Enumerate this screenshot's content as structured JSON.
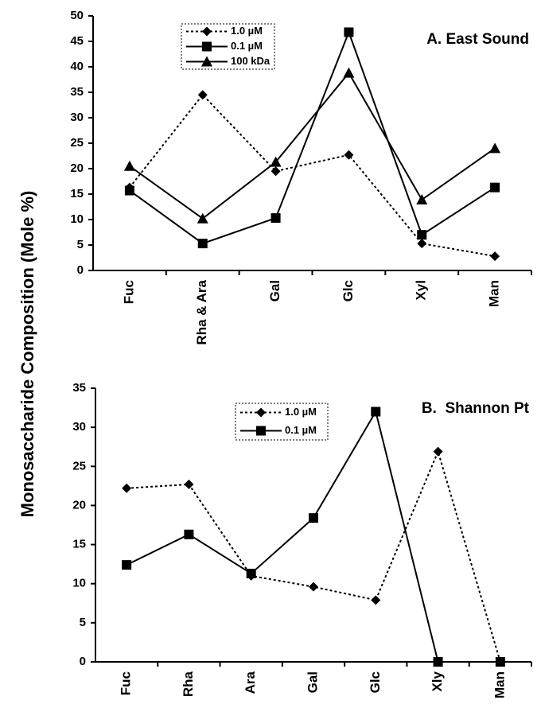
{
  "chart_data": [
    {
      "type": "line",
      "title": "A. East Sound",
      "ylabel": "Monosaccharide Composition (Mole %)",
      "categories": [
        "Fuc",
        "Rha & Ara",
        "Gal",
        "Glc",
        "Xyl",
        "Man"
      ],
      "series": [
        {
          "name": "1.0 µM",
          "color": "#000000",
          "line_style": "dotted",
          "marker": "diamond",
          "values": [
            16.3,
            34.5,
            19.5,
            22.7,
            5.3,
            2.8
          ]
        },
        {
          "name": "0.1 µM",
          "color": "#000000",
          "line_style": "solid",
          "marker": "square",
          "values": [
            15.7,
            5.3,
            10.3,
            46.8,
            7,
            16.3
          ]
        },
        {
          "name": "100 kDa",
          "color": "#000000",
          "line_style": "solid",
          "marker": "triangle",
          "values": [
            20.5,
            10.2,
            21.3,
            38.8,
            13.9,
            24
          ]
        }
      ],
      "ylim": [
        0,
        50
      ],
      "yticks": [
        0,
        5,
        10,
        15,
        20,
        25,
        30,
        35,
        40,
        45,
        50
      ],
      "grid": false
    },
    {
      "type": "line",
      "title": "B.  Shannon Pt",
      "categories": [
        "Fuc",
        "Rha",
        "Ara",
        "Gal",
        "Glc",
        "Xly",
        "Man"
      ],
      "series": [
        {
          "name": "1.0 µM",
          "color": "#000000",
          "line_style": "dotted",
          "marker": "diamond",
          "values": [
            22.2,
            22.7,
            11,
            9.6,
            7.9,
            26.9,
            0
          ]
        },
        {
          "name": "0.1 µM",
          "color": "#000000",
          "line_style": "solid",
          "marker": "square",
          "values": [
            12.4,
            16.3,
            11.3,
            18.4,
            32,
            0,
            0
          ]
        }
      ],
      "ylim": [
        0,
        35
      ],
      "yticks": [
        0,
        5,
        10,
        15,
        20,
        25,
        30,
        35
      ],
      "grid": false
    }
  ]
}
